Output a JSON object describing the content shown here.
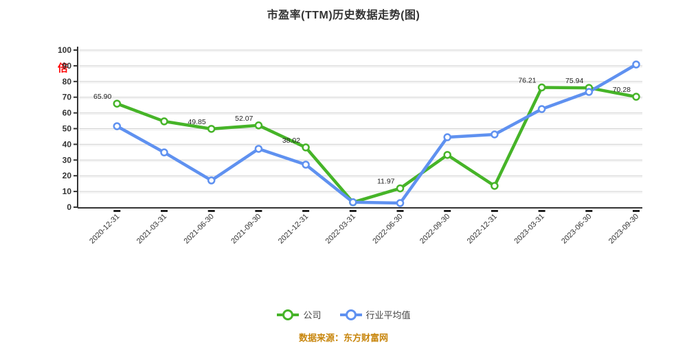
{
  "title": "市盈率(TTM)历史数据走势(图)",
  "footer": {
    "source_text": "数据来源：东方财富网"
  },
  "y_axis": {
    "unit": "倍",
    "unit_color": "#ff0000",
    "ticks": [
      0,
      10,
      20,
      30,
      40,
      50,
      60,
      70,
      80,
      90,
      100
    ]
  },
  "legend": {
    "items": [
      {
        "label": "公司",
        "color": "#46b428"
      },
      {
        "label": "行业平均值",
        "color": "#5f91f0"
      }
    ]
  },
  "chart_data": {
    "type": "line",
    "title": "市盈率(TTM)历史数据走势(图)",
    "ylabel": "倍",
    "ylim": [
      0,
      100
    ],
    "grid": true,
    "legend_position": "bottom",
    "categories": [
      "2020-12-31",
      "2021-03-31",
      "2021-06-30",
      "2021-09-30",
      "2021-12-31",
      "2022-03-31",
      "2022-06-30",
      "2022-09-30",
      "2022-12-31",
      "2023-03-31",
      "2023-06-30",
      "2023-09-30"
    ],
    "series": [
      {
        "name": "公司",
        "color": "#46b428",
        "values": [
          65.9,
          54.62,
          49.85,
          52.07,
          38.02,
          3.09,
          11.97,
          33.26,
          13.54,
          76.21,
          75.94,
          70.28
        ],
        "point_labels": {
          "0": "65.90",
          "2": "49.85",
          "3": "52.07",
          "4": "38.02",
          "6": "11.97",
          "9": "76.21",
          "10": "75.94",
          "11": "70.28"
        }
      },
      {
        "name": "行业平均值",
        "color": "#5f91f0",
        "values": [
          51.53,
          34.86,
          17.03,
          37.12,
          27.07,
          3.15,
          2.62,
          44.53,
          46.29,
          62.45,
          73.36,
          90.83
        ],
        "point_labels": {}
      }
    ]
  }
}
